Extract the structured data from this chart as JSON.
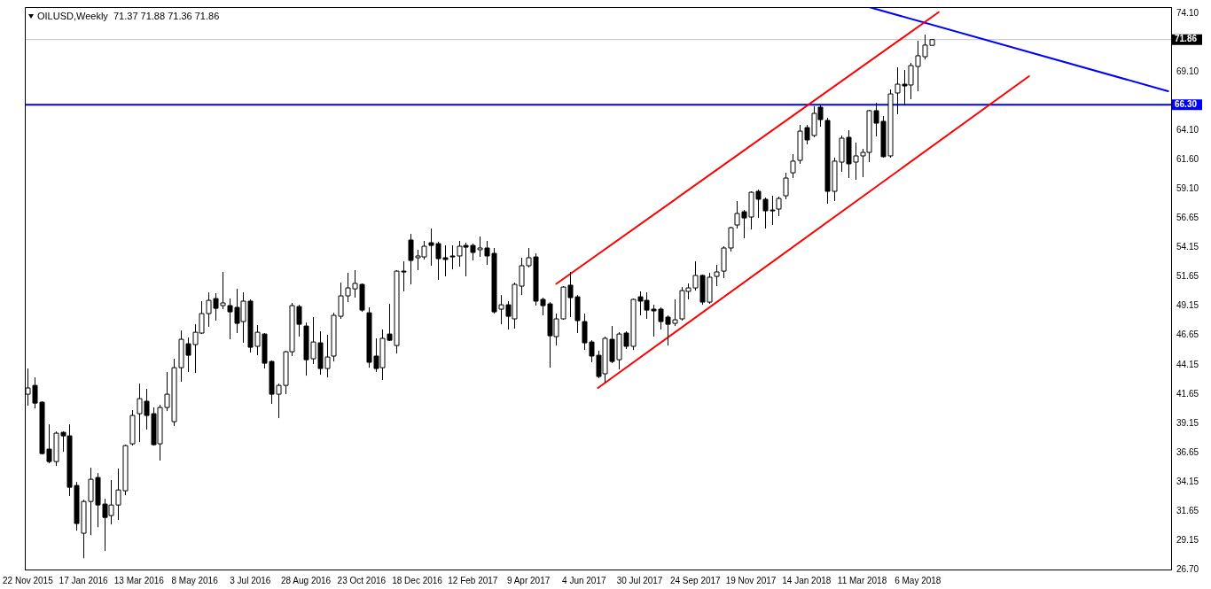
{
  "chart_data": {
    "type": "candlestick",
    "title": "OILUSD,Weekly  71.37 71.88 71.36 71.86",
    "x": [
      "2015-11-22",
      "2015-11-29",
      "2015-12-06",
      "2015-12-13",
      "2015-12-20",
      "2015-12-27",
      "2016-01-03",
      "2016-01-10",
      "2016-01-17",
      "2016-01-24",
      "2016-01-31",
      "2016-02-07",
      "2016-02-14",
      "2016-02-21",
      "2016-02-28",
      "2016-03-06",
      "2016-03-13",
      "2016-03-20",
      "2016-03-27",
      "2016-04-03",
      "2016-04-10",
      "2016-04-17",
      "2016-04-24",
      "2016-05-01",
      "2016-05-08",
      "2016-05-15",
      "2016-05-22",
      "2016-05-29",
      "2016-06-05",
      "2016-06-12",
      "2016-06-19",
      "2016-06-26",
      "2016-07-03",
      "2016-07-10",
      "2016-07-17",
      "2016-07-24",
      "2016-07-31",
      "2016-08-07",
      "2016-08-14",
      "2016-08-21",
      "2016-08-28",
      "2016-09-04",
      "2016-09-11",
      "2016-09-18",
      "2016-09-25",
      "2016-10-02",
      "2016-10-09",
      "2016-10-16",
      "2016-10-23",
      "2016-10-30",
      "2016-11-06",
      "2016-11-13",
      "2016-11-20",
      "2016-11-27",
      "2016-12-04",
      "2016-12-11",
      "2016-12-18",
      "2016-12-25",
      "2017-01-01",
      "2017-01-08",
      "2017-01-15",
      "2017-01-22",
      "2017-01-29",
      "2017-02-05",
      "2017-02-12",
      "2017-02-19",
      "2017-02-26",
      "2017-03-05",
      "2017-03-12",
      "2017-03-19",
      "2017-03-26",
      "2017-04-02",
      "2017-04-09",
      "2017-04-16",
      "2017-04-23",
      "2017-04-30",
      "2017-05-07",
      "2017-05-14",
      "2017-05-21",
      "2017-05-28",
      "2017-06-04",
      "2017-06-11",
      "2017-06-18",
      "2017-06-25",
      "2017-07-02",
      "2017-07-09",
      "2017-07-16",
      "2017-07-23",
      "2017-07-30",
      "2017-08-06",
      "2017-08-13",
      "2017-08-20",
      "2017-08-27",
      "2017-09-03",
      "2017-09-10",
      "2017-09-17",
      "2017-09-24",
      "2017-10-01",
      "2017-10-08",
      "2017-10-15",
      "2017-10-22",
      "2017-10-29",
      "2017-11-05",
      "2017-11-12",
      "2017-11-19",
      "2017-11-26",
      "2017-12-03",
      "2017-12-10",
      "2017-12-17",
      "2017-12-24",
      "2017-12-31",
      "2018-01-07",
      "2018-01-14",
      "2018-01-21",
      "2018-01-28",
      "2018-02-04",
      "2018-02-11",
      "2018-02-18",
      "2018-02-25",
      "2018-03-04",
      "2018-03-11",
      "2018-03-18",
      "2018-03-25",
      "2018-04-01",
      "2018-04-08",
      "2018-04-15",
      "2018-04-22",
      "2018-04-29",
      "2018-05-06",
      "2018-05-13",
      "2018-05-20"
    ],
    "ohlc": [
      [
        41.64,
        43.83,
        40.66,
        42.17
      ],
      [
        42.39,
        43.07,
        40.43,
        40.88
      ],
      [
        40.96,
        41.04,
        36.5,
        36.58
      ],
      [
        36.96,
        39.07,
        35.75,
        35.9
      ],
      [
        35.9,
        38.47,
        35.52,
        38.32
      ],
      [
        38.39,
        38.47,
        36.73,
        38.09
      ],
      [
        38.09,
        39.07,
        32.96,
        33.71
      ],
      [
        33.86,
        34.16,
        30.01,
        30.62
      ],
      [
        29.79,
        32.65,
        27.67,
        32.5
      ],
      [
        32.5,
        35.37,
        29.63,
        34.39
      ],
      [
        34.54,
        34.92,
        30.31,
        32.2
      ],
      [
        32.28,
        32.73,
        28.28,
        31.14
      ],
      [
        31.3,
        34.32,
        30.54,
        32.2
      ],
      [
        32.2,
        35.3,
        30.92,
        33.48
      ],
      [
        33.41,
        37.34,
        33.03,
        37.26
      ],
      [
        37.41,
        40.28,
        37.26,
        39.83
      ],
      [
        39.98,
        42.54,
        37.56,
        41.26
      ],
      [
        41.04,
        42.09,
        38.62,
        39.83
      ],
      [
        39.98,
        40.51,
        37.26,
        37.34
      ],
      [
        37.41,
        40.73,
        35.98,
        40.51
      ],
      [
        40.51,
        43.53,
        40.2,
        41.64
      ],
      [
        39.3,
        44.66,
        38.92,
        43.9
      ],
      [
        43.9,
        47.07,
        42.7,
        46.32
      ],
      [
        45.94,
        46.47,
        43.53,
        44.96
      ],
      [
        45.87,
        47.6,
        43.45,
        46.92
      ],
      [
        46.85,
        49.57,
        46.77,
        48.51
      ],
      [
        48.51,
        50.32,
        47.38,
        49.64
      ],
      [
        49.79,
        50.25,
        47.91,
        48.96
      ],
      [
        49.19,
        52.06,
        48.89,
        49.42
      ],
      [
        49.19,
        49.79,
        46.32,
        48.66
      ],
      [
        49.04,
        50.62,
        46.85,
        47.68
      ],
      [
        47.83,
        50.32,
        46.02,
        49.57
      ],
      [
        49.57,
        49.72,
        45.19,
        45.64
      ],
      [
        45.72,
        47.53,
        44.96,
        46.92
      ],
      [
        46.77,
        46.85,
        43.83,
        44.28
      ],
      [
        44.43,
        44.51,
        40.81,
        41.64
      ],
      [
        41.64,
        42.54,
        39.6,
        42.39
      ],
      [
        42.39,
        45.34,
        41.64,
        45.26
      ],
      [
        45.26,
        49.42,
        44.89,
        49.19
      ],
      [
        49.11,
        49.26,
        46.55,
        47.6
      ],
      [
        47.45,
        47.75,
        43.22,
        44.58
      ],
      [
        44.66,
        48.21,
        44.21,
        46.09
      ],
      [
        46.02,
        47.0,
        43.3,
        43.83
      ],
      [
        43.83,
        46.7,
        43.07,
        44.81
      ],
      [
        44.89,
        48.58,
        44.43,
        48.36
      ],
      [
        48.28,
        51.15,
        48.06,
        50.02
      ],
      [
        50.02,
        51.98,
        49.49,
        50.7
      ],
      [
        50.62,
        52.21,
        49.87,
        51.08
      ],
      [
        51.0,
        51.08,
        48.66,
        48.81
      ],
      [
        48.58,
        49.04,
        43.9,
        44.36
      ],
      [
        44.89,
        46.4,
        43.53,
        43.83
      ],
      [
        43.9,
        47.15,
        42.85,
        46.4
      ],
      [
        46.77,
        49.34,
        46.17,
        46.24
      ],
      [
        45.79,
        52.21,
        45.11,
        52.13
      ],
      [
        52.13,
        52.96,
        50.4,
        52.06
      ],
      [
        54.78,
        55.3,
        51.0,
        53.04
      ],
      [
        53.27,
        53.95,
        52.21,
        53.42
      ],
      [
        53.34,
        54.7,
        53.12,
        54.25
      ],
      [
        54.55,
        55.76,
        52.59,
        54.32
      ],
      [
        54.47,
        54.63,
        51.38,
        53.19
      ],
      [
        53.27,
        54.32,
        51.68,
        53.12
      ],
      [
        53.42,
        54.32,
        52.28,
        53.34
      ],
      [
        53.42,
        54.7,
        52.51,
        54.25
      ],
      [
        54.32,
        54.55,
        51.68,
        54.17
      ],
      [
        54.32,
        54.47,
        53.04,
        53.72
      ],
      [
        53.95,
        55.08,
        53.34,
        54.1
      ],
      [
        54.1,
        54.7,
        52.66,
        53.42
      ],
      [
        53.64,
        54.1,
        48.51,
        48.66
      ],
      [
        48.89,
        50.09,
        47.6,
        49.26
      ],
      [
        49.26,
        49.57,
        47.15,
        48.28
      ],
      [
        48.06,
        51.15,
        47.23,
        51.0
      ],
      [
        50.85,
        53.27,
        50.09,
        52.59
      ],
      [
        52.59,
        54.1,
        52.44,
        53.27
      ],
      [
        53.34,
        53.64,
        49.19,
        49.57
      ],
      [
        49.72,
        49.87,
        48.36,
        49.19
      ],
      [
        49.34,
        49.49,
        43.9,
        46.62
      ],
      [
        46.55,
        48.51,
        45.79,
        48.06
      ],
      [
        48.06,
        50.85,
        47.98,
        50.77
      ],
      [
        50.93,
        52.06,
        48.21,
        49.87
      ],
      [
        49.94,
        50.09,
        46.85,
        47.91
      ],
      [
        47.83,
        48.51,
        45.41,
        46.02
      ],
      [
        46.09,
        46.24,
        44.36,
        44.89
      ],
      [
        44.96,
        45.34,
        43.0,
        43.15
      ],
      [
        43.38,
        46.55,
        42.62,
        46.4
      ],
      [
        46.32,
        47.45,
        44.28,
        44.43
      ],
      [
        44.58,
        46.92,
        43.75,
        46.77
      ],
      [
        46.85,
        47.0,
        45.49,
        45.72
      ],
      [
        45.72,
        49.79,
        45.41,
        49.72
      ],
      [
        49.94,
        50.4,
        48.36,
        49.57
      ],
      [
        49.64,
        50.32,
        48.06,
        48.81
      ],
      [
        48.89,
        49.26,
        46.55,
        48.74
      ],
      [
        48.89,
        49.04,
        47.15,
        47.83
      ],
      [
        48.21,
        48.36,
        45.79,
        47.6
      ],
      [
        47.68,
        49.72,
        47.45,
        47.98
      ],
      [
        48.06,
        50.77,
        47.91,
        50.47
      ],
      [
        50.4,
        51.08,
        49.72,
        50.7
      ],
      [
        50.7,
        52.96,
        50.47,
        51.76
      ],
      [
        51.76,
        51.83,
        49.26,
        49.49
      ],
      [
        49.49,
        51.98,
        49.34,
        51.61
      ],
      [
        51.68,
        52.66,
        50.85,
        52.06
      ],
      [
        52.13,
        54.25,
        51.53,
        54.1
      ],
      [
        54.1,
        55.91,
        53.79,
        55.83
      ],
      [
        56.06,
        58.1,
        55.76,
        57.04
      ],
      [
        57.19,
        57.34,
        54.93,
        56.66
      ],
      [
        56.74,
        58.93,
        55.68,
        58.85
      ],
      [
        58.93,
        59.08,
        56.66,
        58.25
      ],
      [
        58.25,
        58.4,
        55.76,
        57.27
      ],
      [
        57.34,
        58.55,
        56.06,
        57.27
      ],
      [
        57.42,
        58.47,
        56.81,
        58.32
      ],
      [
        58.55,
        60.51,
        58.25,
        60.06
      ],
      [
        60.51,
        62.1,
        60.06,
        61.5
      ],
      [
        61.57,
        64.59,
        61.27,
        64.06
      ],
      [
        64.36,
        64.59,
        62.93,
        63.31
      ],
      [
        63.69,
        66.18,
        63.54,
        65.57
      ],
      [
        66.1,
        66.33,
        64.44,
        65.04
      ],
      [
        64.97,
        65.2,
        57.87,
        58.93
      ],
      [
        58.93,
        61.8,
        58.1,
        61.5
      ],
      [
        61.42,
        63.69,
        60.59,
        63.46
      ],
      [
        63.53,
        64.14,
        60.06,
        61.27
      ],
      [
        61.42,
        63.08,
        59.91,
        61.95
      ],
      [
        61.95,
        62.55,
        60.14,
        62.25
      ],
      [
        62.25,
        65.87,
        61.42,
        65.8
      ],
      [
        65.8,
        66.48,
        63.61,
        64.74
      ],
      [
        64.89,
        65.35,
        61.8,
        61.88
      ],
      [
        61.95,
        67.61,
        61.8,
        67.23
      ],
      [
        67.31,
        69.5,
        65.5,
        68.06
      ],
      [
        68.06,
        69.27,
        66.25,
        67.91
      ],
      [
        67.99,
        69.88,
        66.78,
        69.65
      ],
      [
        69.57,
        71.76,
        67.46,
        70.48
      ],
      [
        70.4,
        72.29,
        70.17,
        71.39
      ],
      [
        71.37,
        71.88,
        71.36,
        71.86
      ]
    ],
    "series": [
      {
        "type": "line",
        "x": [
          "2017-05-07",
          "2018-05-27"
        ],
        "values": [
          51.04,
          74.2
        ],
        "color": "#ff0000"
      },
      {
        "type": "line",
        "x": [
          "2017-06-18",
          "2018-08-26"
        ],
        "values": [
          42.17,
          68.74
        ],
        "color": "#ff0000"
      },
      {
        "type": "line",
        "x": [
          "2018-03-18",
          "2019-01-13"
        ],
        "values": [
          74.63,
          67.46
        ],
        "color": "#0000ff"
      }
    ],
    "ref_lines": [
      {
        "axis": "y",
        "value": 71.86,
        "label": "71.86",
        "color": "#c0c0c0"
      },
      {
        "axis": "y",
        "value": 66.3,
        "label": "66.30",
        "color": "#0000ff"
      }
    ],
    "xlim": [
      "2015-11-19",
      "2019-01-16"
    ],
    "xticks": [
      {
        "value": "2015-11-22",
        "label": "22 Nov 2015"
      },
      {
        "value": "2016-01-17",
        "label": "17 Jan 2016"
      },
      {
        "value": "2016-03-13",
        "label": "13 Mar 2016"
      },
      {
        "value": "2016-05-08",
        "label": "8 May 2016"
      },
      {
        "value": "2016-07-03",
        "label": "3 Jul 2016"
      },
      {
        "value": "2016-08-28",
        "label": "28 Aug 2016"
      },
      {
        "value": "2016-10-23",
        "label": "23 Oct 2016"
      },
      {
        "value": "2016-12-18",
        "label": "18 Dec 2016"
      },
      {
        "value": "2017-02-12",
        "label": "12 Feb 2017"
      },
      {
        "value": "2017-04-09",
        "label": "9 Apr 2017"
      },
      {
        "value": "2017-06-04",
        "label": "4 Jun 2017"
      },
      {
        "value": "2017-07-30",
        "label": "30 Jul 2017"
      },
      {
        "value": "2017-09-24",
        "label": "24 Sep 2017"
      },
      {
        "value": "2017-11-19",
        "label": "19 Nov 2017"
      },
      {
        "value": "2018-01-14",
        "label": "14 Jan 2018"
      },
      {
        "value": "2018-03-11",
        "label": "11 Mar 2018"
      },
      {
        "value": "2018-05-06",
        "label": "6 May 2018"
      }
    ],
    "ylim": [
      26.7,
      74.63
    ],
    "yticks": [
      {
        "value": 74.1,
        "label": "74.10"
      },
      {
        "value": 69.1,
        "label": "69.10"
      },
      {
        "value": 64.1,
        "label": "64.10"
      },
      {
        "value": 61.6,
        "label": "61.60"
      },
      {
        "value": 59.1,
        "label": "59.10"
      },
      {
        "value": 56.65,
        "label": "56.65"
      },
      {
        "value": 54.15,
        "label": "54.15"
      },
      {
        "value": 51.65,
        "label": "51.65"
      },
      {
        "value": 49.15,
        "label": "49.15"
      },
      {
        "value": 46.65,
        "label": "46.65"
      },
      {
        "value": 44.15,
        "label": "44.15"
      },
      {
        "value": 41.65,
        "label": "41.65"
      },
      {
        "value": 39.15,
        "label": "39.15"
      },
      {
        "value": 36.65,
        "label": "36.65"
      },
      {
        "value": 34.15,
        "label": "34.15"
      },
      {
        "value": 31.65,
        "label": "31.65"
      },
      {
        "value": 29.15,
        "label": "29.15"
      },
      {
        "value": 26.7,
        "label": "26.70"
      }
    ],
    "grid": false,
    "legend": false
  }
}
